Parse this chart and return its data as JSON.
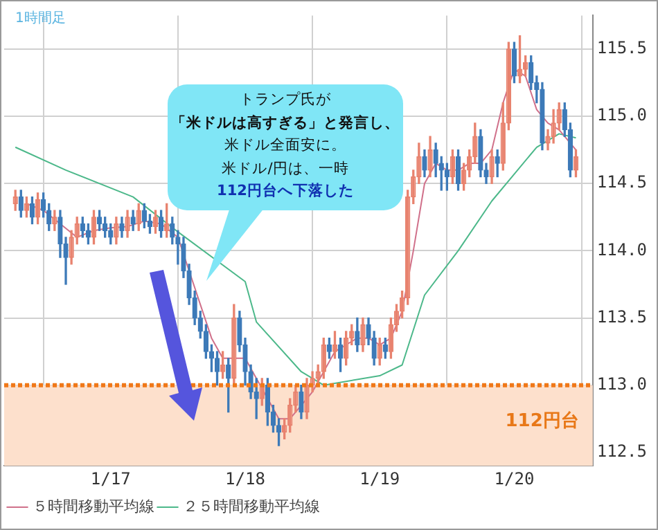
{
  "chart_data": {
    "type": "candlestick",
    "annotations": [
      "1時間足",
      "トランプ氏が",
      "「米ドルは高すぎる」と発言し、",
      "米ドル全面安に。",
      "米ドル/円は、一時",
      "112円台へ下落した"
    ],
    "x": [
      "--01-16T07:00",
      "--01-16T08:00",
      "--01-16T09:00",
      "--01-16T10:00",
      "--01-16T11:00",
      "--01-16T12:00",
      "--01-16T13:00",
      "--01-16T14:00",
      "--01-16T15:00",
      "--01-16T16:00",
      "--01-16T17:00",
      "--01-16T18:00",
      "--01-16T19:00",
      "--01-16T20:00",
      "--01-16T21:00",
      "--01-16T22:00",
      "--01-16T23:00",
      "--01-17T00:00",
      "--01-17T01:00",
      "--01-17T02:00",
      "--01-17T03:00",
      "--01-17T04:00",
      "--01-17T05:00",
      "--01-17T06:00",
      "--01-17T07:00",
      "--01-17T08:00",
      "--01-17T09:00",
      "--01-17T10:00",
      "--01-17T11:00",
      "--01-17T12:00",
      "--01-17T13:00",
      "--01-17T14:00",
      "--01-17T15:00",
      "--01-17T16:00",
      "--01-17T17:00",
      "--01-17T18:00",
      "--01-17T19:00",
      "--01-17T20:00",
      "--01-17T21:00",
      "--01-17T22:00",
      "--01-17T23:00",
      "--01-18T00:00",
      "--01-18T01:00",
      "--01-18T02:00",
      "--01-18T03:00",
      "--01-18T04:00",
      "--01-18T05:00",
      "--01-18T06:00",
      "--01-18T07:00",
      "--01-18T08:00",
      "--01-18T09:00",
      "--01-18T10:00",
      "--01-18T11:00",
      "--01-18T12:00",
      "--01-18T13:00",
      "--01-18T14:00",
      "--01-18T15:00",
      "--01-18T16:00",
      "--01-18T17:00",
      "--01-18T18:00",
      "--01-18T19:00",
      "--01-18T20:00",
      "--01-18T21:00",
      "--01-18T22:00",
      "--01-18T23:00",
      "--01-19T00:00",
      "--01-19T01:00",
      "--01-19T02:00",
      "--01-19T03:00",
      "--01-19T04:00",
      "--01-19T05:00",
      "--01-19T06:00",
      "--01-19T07:00",
      "--01-19T08:00",
      "--01-19T09:00",
      "--01-19T10:00",
      "--01-19T11:00",
      "--01-19T12:00",
      "--01-19T13:00",
      "--01-19T14:00",
      "--01-19T15:00",
      "--01-19T16:00",
      "--01-19T17:00",
      "--01-19T18:00",
      "--01-19T19:00",
      "--01-19T20:00",
      "--01-19T21:00",
      "--01-19T22:00",
      "--01-19T23:00",
      "--01-20T00:00",
      "--01-20T01:00",
      "--01-20T02:00",
      "--01-20T03:00",
      "--01-20T04:00",
      "--01-20T05:00",
      "--01-20T06:00",
      "--01-20T07:00",
      "--01-20T08:00",
      "--01-20T09:00",
      "--01-20T10:00",
      "--01-20T11:00"
    ],
    "ohlc": [
      [
        114.35,
        114.45,
        114.3,
        114.4
      ],
      [
        114.4,
        114.45,
        114.25,
        114.3
      ],
      [
        114.3,
        114.4,
        114.25,
        114.35
      ],
      [
        114.35,
        114.4,
        114.2,
        114.25
      ],
      [
        114.25,
        114.43,
        114.2,
        114.38
      ],
      [
        114.38,
        114.43,
        114.25,
        114.3
      ],
      [
        114.3,
        114.35,
        114.15,
        114.2
      ],
      [
        114.2,
        114.3,
        114.15,
        114.25
      ],
      [
        114.25,
        114.3,
        113.95,
        114.05
      ],
      [
        114.05,
        114.1,
        113.75,
        113.95
      ],
      [
        113.95,
        114.15,
        113.9,
        114.1
      ],
      [
        114.1,
        114.25,
        114.05,
        114.2
      ],
      [
        114.2,
        114.25,
        114.1,
        114.15
      ],
      [
        114.15,
        114.2,
        114.05,
        114.1
      ],
      [
        114.1,
        114.3,
        114.05,
        114.25
      ],
      [
        114.25,
        114.3,
        114.15,
        114.2
      ],
      [
        114.2,
        114.25,
        114.1,
        114.15
      ],
      [
        114.15,
        114.2,
        114.05,
        114.1
      ],
      [
        114.1,
        114.25,
        114.05,
        114.2
      ],
      [
        114.2,
        114.25,
        114.1,
        114.15
      ],
      [
        114.15,
        114.3,
        114.1,
        114.25
      ],
      [
        114.25,
        114.3,
        114.15,
        114.2
      ],
      [
        114.2,
        114.35,
        114.15,
        114.3
      ],
      [
        114.3,
        114.35,
        114.17,
        114.22
      ],
      [
        114.22,
        114.27,
        114.13,
        114.18
      ],
      [
        114.18,
        114.3,
        114.13,
        114.25
      ],
      [
        114.25,
        114.3,
        114.1,
        114.15
      ],
      [
        114.15,
        114.35,
        114.1,
        114.2
      ],
      [
        114.2,
        114.25,
        114.05,
        114.1
      ],
      [
        114.1,
        114.15,
        113.9,
        114.05
      ],
      [
        114.05,
        114.1,
        113.8,
        113.85
      ],
      [
        113.85,
        113.9,
        113.6,
        113.65
      ],
      [
        113.65,
        113.7,
        113.45,
        113.5
      ],
      [
        113.5,
        113.55,
        113.35,
        113.4
      ],
      [
        113.4,
        113.45,
        113.2,
        113.25
      ],
      [
        113.25,
        113.3,
        113.1,
        113.2
      ],
      [
        113.2,
        113.25,
        113.0,
        113.1
      ],
      [
        113.1,
        113.25,
        113.05,
        113.15
      ],
      [
        113.15,
        113.2,
        112.8,
        113.05
      ],
      [
        113.05,
        113.6,
        113.0,
        113.5
      ],
      [
        113.5,
        113.55,
        113.25,
        113.3
      ],
      [
        113.3,
        113.35,
        113.0,
        113.1
      ],
      [
        113.1,
        113.15,
        112.9,
        112.95
      ],
      [
        112.95,
        113.05,
        112.75,
        112.9
      ],
      [
        112.9,
        113.05,
        112.85,
        113.0
      ],
      [
        113.0,
        113.05,
        112.7,
        112.8
      ],
      [
        112.8,
        112.85,
        112.65,
        112.7
      ],
      [
        112.7,
        112.75,
        112.55,
        112.65
      ],
      [
        112.65,
        112.75,
        112.6,
        112.7
      ],
      [
        112.7,
        112.9,
        112.65,
        112.85
      ],
      [
        112.85,
        113.0,
        112.8,
        112.95
      ],
      [
        112.95,
        113.0,
        112.75,
        112.8
      ],
      [
        112.8,
        113.05,
        112.75,
        113.0
      ],
      [
        113.0,
        113.1,
        112.95,
        113.05
      ],
      [
        113.05,
        113.15,
        113.0,
        113.1
      ],
      [
        113.1,
        113.35,
        113.05,
        113.3
      ],
      [
        113.3,
        113.35,
        113.2,
        113.25
      ],
      [
        113.25,
        113.4,
        113.2,
        113.3
      ],
      [
        113.3,
        113.35,
        113.1,
        113.2
      ],
      [
        113.2,
        113.4,
        113.15,
        113.35
      ],
      [
        113.35,
        113.45,
        113.3,
        113.4
      ],
      [
        113.4,
        113.5,
        113.25,
        113.3
      ],
      [
        113.3,
        113.5,
        113.25,
        113.45
      ],
      [
        113.45,
        113.5,
        113.3,
        113.35
      ],
      [
        113.35,
        113.4,
        113.15,
        113.2
      ],
      [
        113.2,
        113.35,
        113.15,
        113.3
      ],
      [
        113.3,
        113.35,
        113.2,
        113.25
      ],
      [
        113.25,
        113.5,
        113.2,
        113.45
      ],
      [
        113.45,
        113.6,
        113.4,
        113.55
      ],
      [
        113.55,
        113.7,
        113.5,
        113.65
      ],
      [
        113.65,
        114.45,
        113.6,
        114.4
      ],
      [
        114.4,
        114.6,
        114.35,
        114.55
      ],
      [
        114.55,
        114.8,
        114.5,
        114.7
      ],
      [
        114.7,
        114.75,
        114.55,
        114.6
      ],
      [
        114.6,
        114.85,
        114.55,
        114.75
      ],
      [
        114.75,
        114.8,
        114.55,
        114.65
      ],
      [
        114.65,
        114.7,
        114.45,
        114.6
      ],
      [
        114.6,
        114.65,
        114.45,
        114.55
      ],
      [
        114.55,
        114.75,
        114.5,
        114.7
      ],
      [
        114.7,
        114.75,
        114.45,
        114.5
      ],
      [
        114.5,
        114.65,
        114.45,
        114.6
      ],
      [
        114.6,
        114.75,
        114.55,
        114.7
      ],
      [
        114.7,
        114.95,
        114.65,
        114.85
      ],
      [
        114.85,
        114.9,
        114.55,
        114.6
      ],
      [
        114.6,
        114.65,
        114.5,
        114.55
      ],
      [
        114.55,
        114.75,
        114.5,
        114.7
      ],
      [
        114.7,
        114.75,
        114.55,
        114.65
      ],
      [
        114.65,
        115.1,
        114.6,
        114.95
      ],
      [
        114.95,
        115.55,
        114.9,
        115.5
      ],
      [
        115.5,
        115.55,
        115.25,
        115.3
      ],
      [
        115.3,
        115.6,
        115.25,
        115.35
      ],
      [
        115.35,
        115.45,
        115.3,
        115.4
      ],
      [
        115.4,
        115.45,
        115.2,
        115.25
      ],
      [
        115.25,
        115.3,
        115.1,
        115.2
      ],
      [
        115.2,
        115.25,
        114.75,
        114.8
      ],
      [
        114.8,
        114.9,
        114.75,
        114.85
      ],
      [
        114.85,
        115.05,
        114.8,
        114.95
      ],
      [
        114.95,
        115.1,
        114.9,
        115.05
      ],
      [
        115.05,
        115.1,
        114.85,
        114.9
      ],
      [
        114.9,
        114.95,
        114.55,
        114.6
      ],
      [
        114.6,
        114.75,
        114.55,
        114.7
      ]
    ],
    "series": [
      {
        "name": "５時間移動平均線",
        "type": "line",
        "color": "#d0708a",
        "x": [
          "--01-16T09:00",
          "--01-16T12:00",
          "--01-16T15:00",
          "--01-16T18:00",
          "--01-16T21:00",
          "--01-17T00:00",
          "--01-17T03:00",
          "--01-17T06:00",
          "--01-17T09:00",
          "--01-17T12:00",
          "--01-17T14:00",
          "--01-17T16:00",
          "--01-17T18:00",
          "--01-17T20:00",
          "--01-17T22:00",
          "--01-18T00:00",
          "--01-18T02:00",
          "--01-18T04:00",
          "--01-18T06:00",
          "--01-18T08:00",
          "--01-18T10:00",
          "--01-18T12:00",
          "--01-18T14:00",
          "--01-18T16:00",
          "--01-18T18:00",
          "--01-18T20:00",
          "--01-18T22:00",
          "--01-19T00:00",
          "--01-19T02:00",
          "--01-19T04:00",
          "--01-19T06:00",
          "--01-19T08:00",
          "--01-19T10:00",
          "--01-19T12:00",
          "--01-19T14:00",
          "--01-19T16:00",
          "--01-19T18:00",
          "--01-19T20:00",
          "--01-19T22:00",
          "--01-20T00:00",
          "--01-20T02:00",
          "--01-20T04:00",
          "--01-20T06:00",
          "--01-20T08:00",
          "--01-20T10:00",
          "--01-20T11:00"
        ],
        "values": [
          114.35,
          114.3,
          114.2,
          114.1,
          114.15,
          114.17,
          114.18,
          114.22,
          114.2,
          114.1,
          113.85,
          113.6,
          113.35,
          113.2,
          113.2,
          113.2,
          113.05,
          112.9,
          112.75,
          112.75,
          112.85,
          112.95,
          113.1,
          113.25,
          113.3,
          113.35,
          113.35,
          113.3,
          113.35,
          113.55,
          114.0,
          114.5,
          114.65,
          114.6,
          114.6,
          114.65,
          114.65,
          114.75,
          115.1,
          115.35,
          115.3,
          115.05,
          114.95,
          114.9,
          114.8,
          114.75
        ]
      },
      {
        "name": "２５時間移動平均線",
        "type": "line",
        "color": "#4cb88a",
        "x": [
          "--01-16T07:00",
          "--01-16T16:00",
          "--01-17T04:00",
          "--01-17T12:00",
          "--01-18T00:00",
          "--01-18T02:00",
          "--01-18T10:00",
          "--01-18T14:00",
          "--01-19T00:00",
          "--01-19T04:00",
          "--01-19T08:00",
          "--01-19T14:00",
          "--01-19T20:00",
          "--01-20T04:00",
          "--01-20T08:00",
          "--01-20T11:00"
        ],
        "values": [
          114.77,
          114.6,
          114.4,
          114.14,
          113.77,
          113.47,
          113.1,
          113.0,
          113.07,
          113.15,
          113.67,
          114.0,
          114.37,
          114.77,
          114.87,
          114.84
        ]
      }
    ],
    "xlim": [
      "--01-16T05:00",
      "--01-20T14:00"
    ],
    "xticks": [
      {
        "value": "--01-17T00:00",
        "label": "1/17"
      },
      {
        "value": "--01-18T00:00",
        "label": "1/18"
      },
      {
        "value": "--01-19T00:00",
        "label": "1/19"
      },
      {
        "value": "--01-20T00:00",
        "label": "1/20"
      }
    ],
    "ylim": [
      112.4,
      115.75
    ],
    "yticks": [
      112.5,
      {
        "value": 113,
        "label": "113.0"
      },
      113.5,
      {
        "value": 114,
        "label": "114.0"
      },
      114.5,
      {
        "value": 115,
        "label": "115.0"
      },
      115.5
    ],
    "ref_lines": [
      {
        "axis": "y",
        "value": 113,
        "color": "#f07818",
        "line_style": "dotted"
      }
    ],
    "bands": [
      {
        "axis": "y",
        "from": 112.4,
        "to": 113,
        "label": "112円台",
        "color": "#fde0cc"
      }
    ],
    "grid": true,
    "legend": "bottom",
    "marker": "none",
    "line_style": "solid"
  }
}
